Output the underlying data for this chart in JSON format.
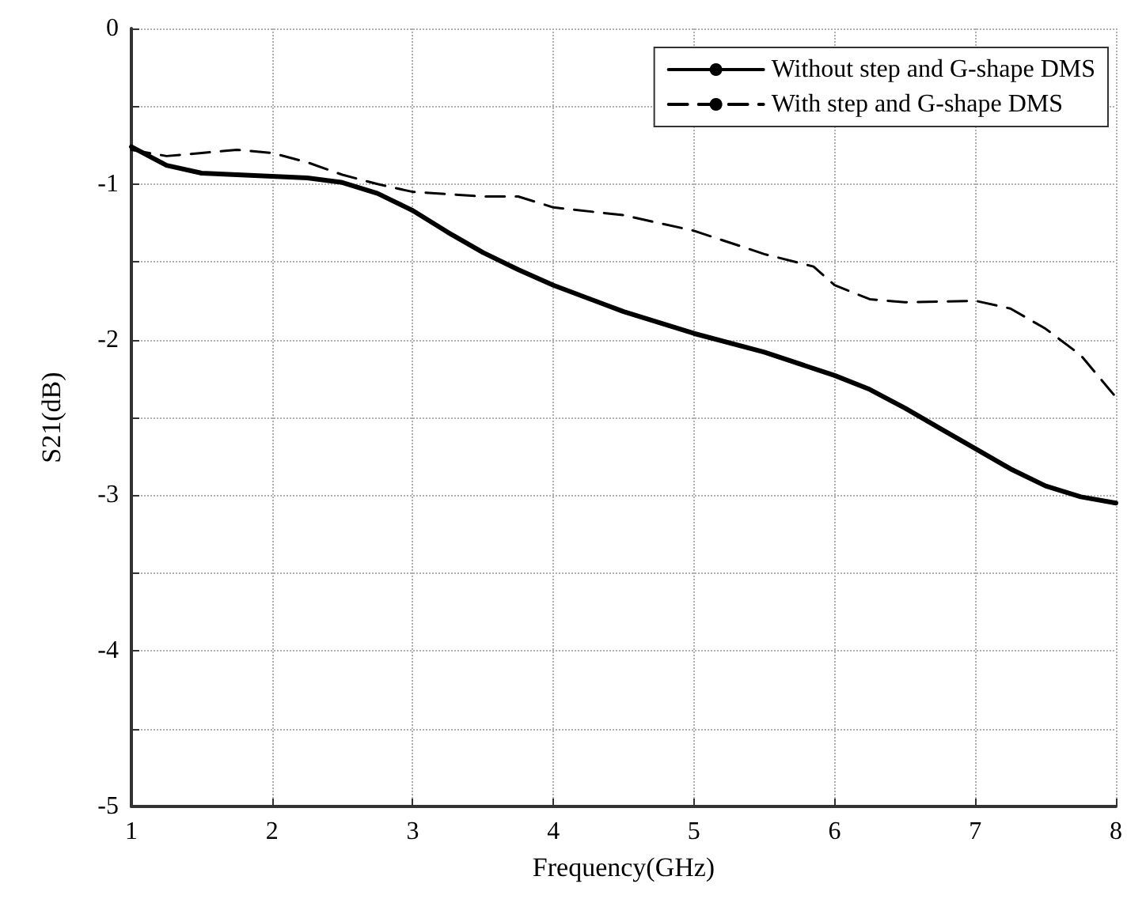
{
  "chart_data": {
    "type": "line",
    "xlabel": "Frequency(GHz)",
    "ylabel": "S21(dB)",
    "xlim": [
      1,
      8
    ],
    "xticks": [
      1,
      2,
      3,
      4,
      5,
      6,
      7,
      8
    ],
    "ylim": [
      -5,
      0
    ],
    "yticks": [
      -5,
      {
        "value": -4.5,
        "label": null
      },
      -4,
      {
        "value": -3.5,
        "label": null
      },
      -3,
      {
        "value": -2.5,
        "label": null
      },
      -2,
      {
        "value": -1.5,
        "label": null
      },
      -1,
      {
        "value": -0.5,
        "label": null
      },
      0
    ],
    "grid": true,
    "legend": "top right",
    "marker": "none",
    "series": [
      {
        "name": "Without step and G-shape DMS",
        "color": "#000000",
        "line_style": "solid",
        "x": [
          1,
          1.25,
          1.5,
          2,
          2.25,
          2.5,
          2.75,
          3,
          3.25,
          3.5,
          3.75,
          4,
          4.5,
          5,
          5.5,
          6,
          6.25,
          6.5,
          6.75,
          7,
          7.25,
          7.5,
          7.75,
          8
        ],
        "values": [
          -0.76,
          -0.88,
          -0.93,
          -0.95,
          -0.96,
          -0.99,
          -1.06,
          -1.17,
          -1.31,
          -1.44,
          -1.55,
          -1.65,
          -1.82,
          -1.96,
          -2.08,
          -2.23,
          -2.32,
          -2.44,
          -2.57,
          -2.7,
          -2.83,
          -2.94,
          -3.01,
          -3.05
        ]
      },
      {
        "name": "With step and G-shape DMS",
        "color": "#000000",
        "line_style": "dashed",
        "x": [
          1,
          1.25,
          1.5,
          1.75,
          2,
          2.25,
          2.5,
          2.75,
          3,
          3.5,
          3.75,
          4,
          4.5,
          5,
          5.5,
          5.85,
          6,
          6.25,
          6.5,
          7,
          7.25,
          7.5,
          7.75,
          8
        ],
        "values": [
          -0.78,
          -0.82,
          -0.8,
          -0.78,
          -0.8,
          -0.86,
          -0.94,
          -1.0,
          -1.05,
          -1.08,
          -1.08,
          -1.15,
          -1.2,
          -1.3,
          -1.45,
          -1.53,
          -1.65,
          -1.74,
          -1.76,
          -1.75,
          -1.8,
          -1.93,
          -2.1,
          -2.37
        ]
      }
    ]
  }
}
